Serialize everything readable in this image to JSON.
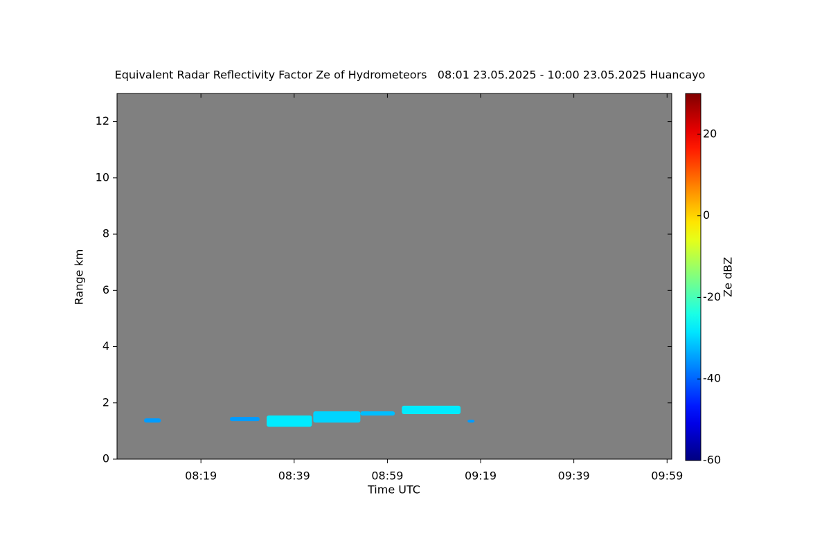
{
  "chart_data": {
    "type": "time-height",
    "title": "Equivalent Radar Reflectivity Factor Ze of Hydrometeors   08:01 23.05.2025 - 10:00 23.05.2025 Huancayo",
    "xlabel": "Time UTC",
    "ylabel": "Range km",
    "colorbar_label": "Ze dBZ",
    "xlim": [
      481,
      600
    ],
    "xticks": [
      {
        "value": 499,
        "label": "08:19"
      },
      {
        "value": 519,
        "label": "08:39"
      },
      {
        "value": 539,
        "label": "08:59"
      },
      {
        "value": 559,
        "label": "09:19"
      },
      {
        "value": 579,
        "label": "09:39"
      },
      {
        "value": 599,
        "label": "09:59"
      }
    ],
    "ylim": [
      0,
      13
    ],
    "yticks": [
      0,
      2,
      4,
      6,
      8,
      10,
      12
    ],
    "clim": [
      -60,
      30
    ],
    "cticks": [
      -60,
      -40,
      -20,
      0,
      20
    ],
    "colormap": "jet",
    "background": "#808080",
    "echoes": {
      "start": [
        486.8,
        505.2,
        513.1,
        523.1,
        533.2,
        542.1,
        556.2
      ],
      "end": [
        490.4,
        511.6,
        522.8,
        533.2,
        540.6,
        554.7,
        557.7
      ],
      "bottom": [
        1.3,
        1.35,
        1.15,
        1.3,
        1.55,
        1.6,
        1.3
      ],
      "top": [
        1.45,
        1.5,
        1.55,
        1.7,
        1.7,
        1.9,
        1.4
      ],
      "values": [
        -35,
        -35,
        -28,
        -30,
        -32,
        -28,
        -35
      ]
    }
  }
}
